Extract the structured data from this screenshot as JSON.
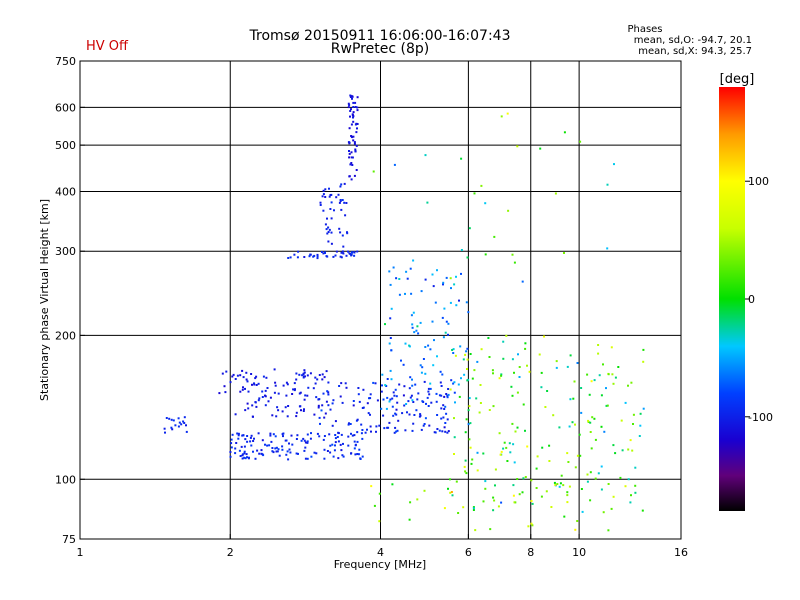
{
  "status_text": "HV Off",
  "status_color": "#cc0000",
  "phases_block": {
    "heading": "Phases",
    "line_o": "mean, sd,O: -94.7, 20.1",
    "line_x": "mean, sd,X:  94.3, 25.7"
  },
  "colorbar": {
    "label": "[deg]",
    "ticks": [
      {
        "value": 100,
        "label": "100"
      },
      {
        "value": 0,
        "label": "0"
      },
      {
        "value": -100,
        "label": "-100"
      }
    ],
    "range": [
      -180,
      180
    ]
  },
  "chart_data": {
    "type": "scatter",
    "title": "Tromsø 20150911 16:06:00-16:07:43",
    "subtitle": "RwPretec (8p)",
    "xlabel": "Frequency [MHz]",
    "ylabel": "Stationary phase Virtual Height [km]",
    "x_scale": "log",
    "y_scale": "log",
    "xlim": [
      1,
      16
    ],
    "ylim": [
      75,
      750
    ],
    "x_ticks": [
      {
        "value": 1,
        "label": "1"
      },
      {
        "value": 2,
        "label": "2"
      },
      {
        "value": 4,
        "label": "4"
      },
      {
        "value": 6,
        "label": "6"
      },
      {
        "value": 8,
        "label": "8"
      },
      {
        "value": 10,
        "label": "10"
      },
      {
        "value": 16,
        "label": "16"
      }
    ],
    "y_ticks": [
      {
        "value": 75,
        "label": "75"
      },
      {
        "value": 100,
        "label": "100"
      },
      {
        "value": 200,
        "label": "200"
      },
      {
        "value": 300,
        "label": "300"
      },
      {
        "value": 400,
        "label": "400"
      },
      {
        "value": 500,
        "label": "500"
      },
      {
        "value": 600,
        "label": "600"
      },
      {
        "value": 750,
        "label": "750"
      }
    ],
    "grid_x": [
      2,
      4,
      6,
      8,
      10
    ],
    "grid_y": [
      100,
      200,
      300,
      400,
      500,
      600
    ],
    "point_clusters": [
      {
        "name": "F-trace",
        "f_range": [
          2.6,
          3.6
        ],
        "h_range": [
          290,
          300
        ],
        "count": 40,
        "phase": -95,
        "spread": 15
      },
      {
        "name": "F-trace-rise",
        "f_range": [
          3.0,
          3.45
        ],
        "h_range": [
          300,
          420
        ],
        "count": 45,
        "phase": -100,
        "spread": 15
      },
      {
        "name": "F-trace-vertical",
        "f_range": [
          3.45,
          3.6
        ],
        "h_range": [
          420,
          640
        ],
        "count": 60,
        "phase": -110,
        "spread": 12
      },
      {
        "name": "E-low-start",
        "f_range": [
          1.45,
          1.65
        ],
        "h_range": [
          125,
          135
        ],
        "count": 18,
        "phase": -95,
        "spread": 12
      },
      {
        "name": "E-layer-main",
        "f_range": [
          2.0,
          3.7
        ],
        "h_range": [
          110,
          125
        ],
        "count": 150,
        "phase": -95,
        "spread": 20
      },
      {
        "name": "E-layer-upper",
        "f_range": [
          1.9,
          3.2
        ],
        "h_range": [
          135,
          170
        ],
        "count": 120,
        "phase": -105,
        "spread": 15
      },
      {
        "name": "Es-band",
        "f_range": [
          3.0,
          5.5
        ],
        "h_range": [
          125,
          160
        ],
        "count": 140,
        "phase": -95,
        "spread": 25
      },
      {
        "name": "mid-band",
        "f_range": [
          4.0,
          6.0
        ],
        "h_range": [
          140,
          280
        ],
        "count": 110,
        "phase": -60,
        "spread": 60
      },
      {
        "name": "noise-high-f",
        "f_range": [
          5.5,
          13.5
        ],
        "h_range": [
          85,
          200
        ],
        "count": 220,
        "phase": 20,
        "spread": 120
      },
      {
        "name": "noise-scattered",
        "f_range": [
          3.8,
          12.0
        ],
        "h_range": [
          250,
          620
        ],
        "count": 30,
        "phase": 10,
        "spread": 140
      },
      {
        "name": "noise-low",
        "f_range": [
          3.8,
          11.5
        ],
        "h_range": [
          78,
          100
        ],
        "count": 30,
        "phase": 30,
        "spread": 120
      }
    ],
    "color_scale": [
      {
        "value": -180,
        "color": "#000000"
      },
      {
        "value": -150,
        "color": "#60007a"
      },
      {
        "value": -120,
        "color": "#1a00d0"
      },
      {
        "value": -80,
        "color": "#0040ff"
      },
      {
        "value": -40,
        "color": "#00c8ff"
      },
      {
        "value": 0,
        "color": "#00e000"
      },
      {
        "value": 60,
        "color": "#c8ff00"
      },
      {
        "value": 100,
        "color": "#ffff00"
      },
      {
        "value": 140,
        "color": "#ff9a00"
      },
      {
        "value": 180,
        "color": "#ff0000"
      }
    ],
    "seed": 20150911
  }
}
